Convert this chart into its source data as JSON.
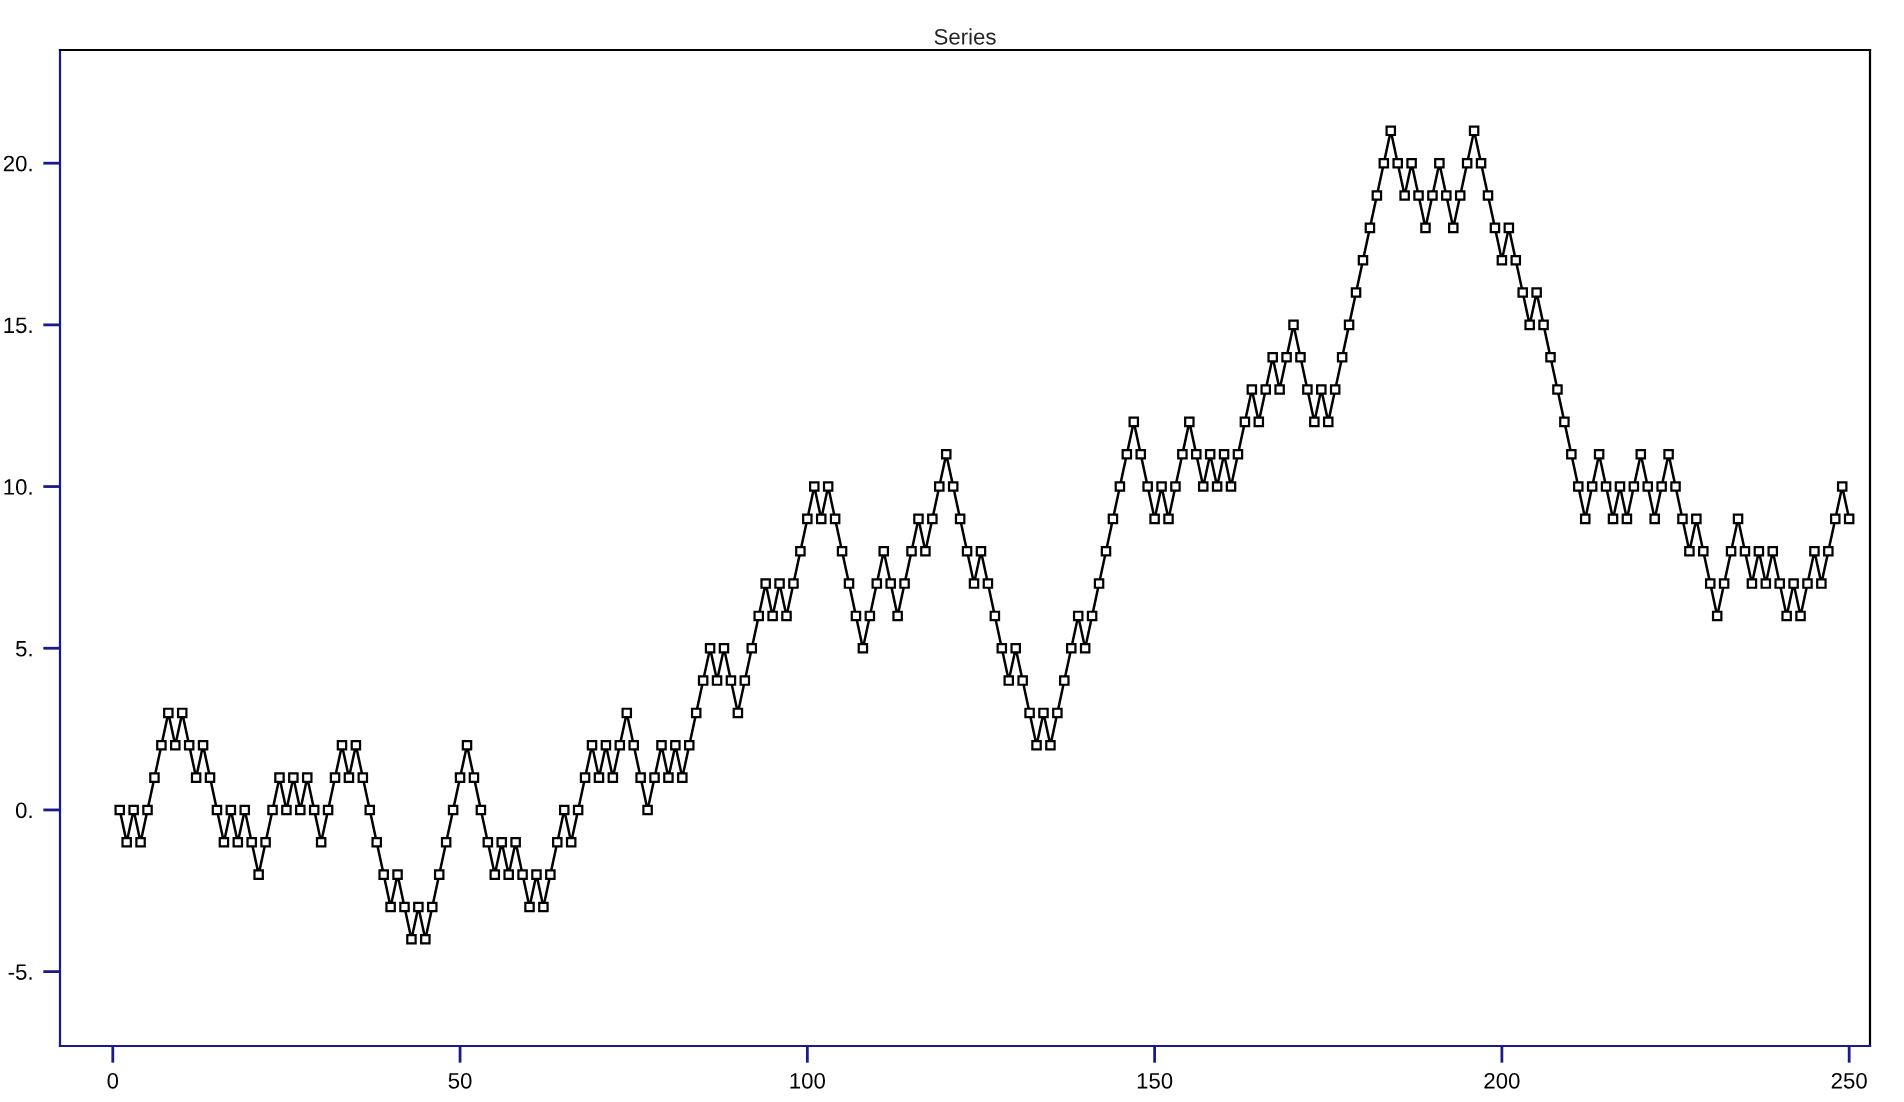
{
  "chart_data": {
    "type": "line",
    "title": "Series",
    "x": [
      1,
      2,
      3,
      4,
      5,
      6,
      7,
      8,
      9,
      10,
      11,
      12,
      13,
      14,
      15,
      16,
      17,
      18,
      19,
      20,
      21,
      22,
      23,
      24,
      25,
      26,
      27,
      28,
      29,
      30,
      31,
      32,
      33,
      34,
      35,
      36,
      37,
      38,
      39,
      40,
      41,
      42,
      43,
      44,
      45,
      46,
      47,
      48,
      49,
      50,
      51,
      52,
      53,
      54,
      55,
      56,
      57,
      58,
      59,
      60,
      61,
      62,
      63,
      64,
      65,
      66,
      67,
      68,
      69,
      70,
      71,
      72,
      73,
      74,
      75,
      76,
      77,
      78,
      79,
      80,
      81,
      82,
      83,
      84,
      85,
      86,
      87,
      88,
      89,
      90,
      91,
      92,
      93,
      94,
      95,
      96,
      97,
      98,
      99,
      100,
      101,
      102,
      103,
      104,
      105,
      106,
      107,
      108,
      109,
      110,
      111,
      112,
      113,
      114,
      115,
      116,
      117,
      118,
      119,
      120,
      121,
      122,
      123,
      124,
      125,
      126,
      127,
      128,
      129,
      130,
      131,
      132,
      133,
      134,
      135,
      136,
      137,
      138,
      139,
      140,
      141,
      142,
      143,
      144,
      145,
      146,
      147,
      148,
      149,
      150,
      151,
      152,
      153,
      154,
      155,
      156,
      157,
      158,
      159,
      160,
      161,
      162,
      163,
      164,
      165,
      166,
      167,
      168,
      169,
      170,
      171,
      172,
      173,
      174,
      175,
      176,
      177,
      178,
      179,
      180,
      181,
      182,
      183,
      184,
      185,
      186,
      187,
      188,
      189,
      190,
      191,
      192,
      193,
      194,
      195,
      196,
      197,
      198,
      199,
      200,
      201,
      202,
      203,
      204,
      205,
      206,
      207,
      208,
      209,
      210,
      211,
      212,
      213,
      214,
      215,
      216,
      217,
      218,
      219,
      220,
      221,
      222,
      223,
      224,
      225,
      226,
      227,
      228,
      229,
      230,
      231,
      232,
      233,
      234,
      235,
      236,
      237,
      238,
      239,
      240,
      241,
      242,
      243,
      244,
      245,
      246,
      247,
      248,
      249,
      250
    ],
    "series": [
      {
        "color": "#000000",
        "values": [
          0,
          -1,
          0,
          -1,
          0,
          1,
          2,
          3,
          2,
          3,
          2,
          1,
          2,
          1,
          0,
          -1,
          0,
          -1,
          0,
          -1,
          -2,
          -1,
          0,
          1,
          0,
          1,
          0,
          1,
          0,
          -1,
          0,
          1,
          2,
          1,
          2,
          1,
          0,
          -1,
          -2,
          -3,
          -2,
          -3,
          -4,
          -3,
          -4,
          -3,
          -2,
          -1,
          0,
          1,
          2,
          1,
          0,
          -1,
          -2,
          -1,
          -2,
          -1,
          -2,
          -3,
          -2,
          -3,
          -2,
          -1,
          0,
          -1,
          0,
          1,
          2,
          1,
          2,
          1,
          2,
          3,
          2,
          1,
          0,
          1,
          2,
          1,
          2,
          1,
          2,
          3,
          4,
          5,
          4,
          5,
          4,
          3,
          4,
          5,
          6,
          7,
          6,
          7,
          6,
          7,
          8,
          9,
          10,
          9,
          10,
          9,
          8,
          7,
          6,
          5,
          6,
          7,
          8,
          7,
          6,
          7,
          8,
          9,
          8,
          9,
          10,
          11,
          10,
          9,
          8,
          7,
          8,
          7,
          6,
          5,
          4,
          5,
          4,
          3,
          2,
          3,
          2,
          3,
          4,
          5,
          6,
          5,
          6,
          7,
          8,
          9,
          10,
          11,
          12,
          11,
          10,
          9,
          10,
          9,
          10,
          11,
          12,
          11,
          10,
          11,
          10,
          11,
          10,
          11,
          12,
          13,
          12,
          13,
          14,
          13,
          14,
          15,
          14,
          13,
          12,
          13,
          12,
          13,
          14,
          15,
          16,
          17,
          18,
          19,
          20,
          21,
          20,
          19,
          20,
          19,
          18,
          19,
          20,
          19,
          18,
          19,
          20,
          21,
          20,
          19,
          18,
          17,
          18,
          17,
          16,
          15,
          16,
          15,
          14,
          13,
          12,
          11,
          10,
          9,
          10,
          11,
          10,
          9,
          10,
          9,
          10,
          11,
          10,
          9,
          10,
          11,
          10,
          9,
          8,
          9,
          8,
          7,
          6,
          7,
          8,
          9,
          8,
          7,
          8,
          7,
          8,
          7,
          6,
          7,
          6,
          7,
          8,
          7,
          8,
          9,
          10,
          9
        ]
      }
    ],
    "xlim": [
      -7.6,
      253
    ],
    "ylim": [
      -7.3,
      23.5
    ],
    "xticks": [
      0,
      50,
      100,
      150,
      200,
      250
    ],
    "yticks": [
      {
        "value": -5,
        "label": "-5."
      },
      {
        "value": 0,
        "label": "0."
      },
      {
        "value": 5,
        "label": "5."
      },
      {
        "value": 10,
        "label": "10."
      },
      {
        "value": 15,
        "label": "15."
      },
      {
        "value": 20,
        "label": "20."
      }
    ],
    "marker": "square",
    "line_style": "solid",
    "grid": false,
    "legend": false
  }
}
